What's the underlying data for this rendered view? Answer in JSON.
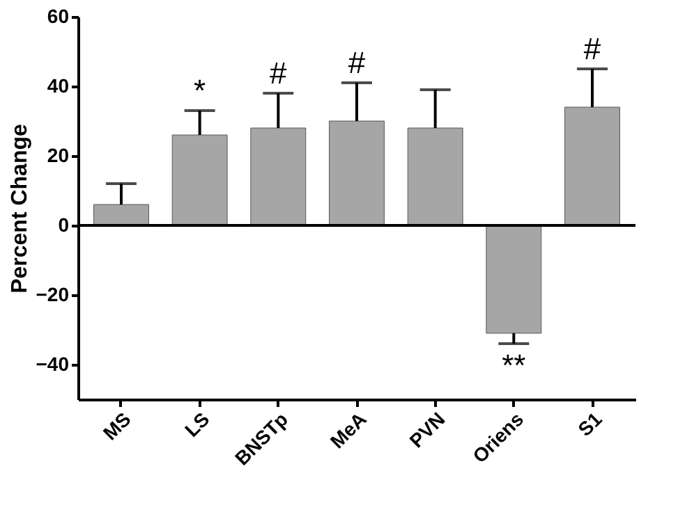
{
  "chart_data": {
    "type": "bar",
    "ylabel": "Percent Change",
    "categories": [
      "MS",
      "LS",
      "BNSTp",
      "MeA",
      "PVN",
      "Oriens",
      "S1"
    ],
    "values": [
      6,
      26,
      28,
      30,
      28,
      -31,
      34
    ],
    "errors": [
      [
        6,
        12
      ],
      [
        26,
        33
      ],
      [
        28,
        38
      ],
      [
        30,
        41
      ],
      [
        28,
        39
      ],
      [
        -34,
        -31
      ],
      [
        34,
        45
      ]
    ],
    "color": "#a6a6a6",
    "ylim": [
      -50,
      60
    ],
    "yticks": [
      -40,
      -20,
      0,
      20,
      40,
      60
    ],
    "grid": false,
    "ref_lines": [
      {
        "axis": "y",
        "value": 0,
        "color": "#000000"
      }
    ],
    "value_labels": [
      null,
      "*",
      "#",
      "#",
      null,
      "**",
      "#"
    ]
  }
}
